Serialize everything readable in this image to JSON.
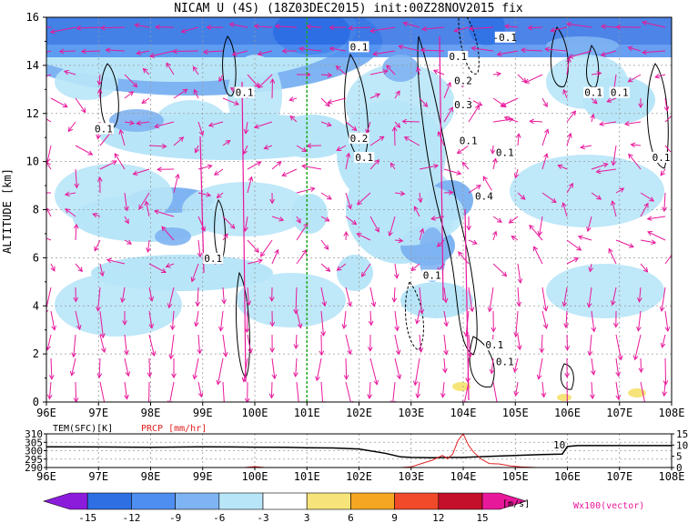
{
  "title": "NICAM U (4S) (18Z03DEC2015) init:00Z28NOV2015 fix",
  "colors": {
    "shade_levels": [
      "#8c1cdc",
      "#2e6fe4",
      "#4d8ef0",
      "#7fb4f2",
      "#b8e6f8",
      "#ffffff",
      "#f6e47a",
      "#f5a623",
      "#f04a2a",
      "#c4102a",
      "#e8189a"
    ],
    "vector": "#e8189a",
    "contour": "#000000",
    "reference_line": "#22aa22",
    "temperature_line": "#000000",
    "precip_line": "#e02020"
  },
  "chart_data": [
    {
      "type": "heatmap",
      "title": "NICAM U (4S) (18Z03DEC2015) init:00Z28NOV2015 fix",
      "ylabel": "ALTITUDE [km]",
      "x_ticks": [
        "96E",
        "97E",
        "98E",
        "99E",
        "100E",
        "101E",
        "102E",
        "103E",
        "104E",
        "105E",
        "106E",
        "107E",
        "108E"
      ],
      "x_range": [
        96,
        108
      ],
      "y_ticks": [
        "0",
        "2",
        "4",
        "6",
        "8",
        "10",
        "12",
        "14",
        "16"
      ],
      "y_range": [
        0,
        16
      ],
      "grid": true,
      "reference_line_x": 101,
      "colorbar": {
        "levels": [
          "-15",
          "-12",
          "-9",
          "-6",
          "-3",
          "3",
          "6",
          "9",
          "12",
          "15"
        ],
        "unit": "[m/s]"
      },
      "contour_labels": [
        {
          "text": "0.1",
          "x": 97.1,
          "y": 11.3
        },
        {
          "text": "0.1",
          "x": 99.8,
          "y": 12.8
        },
        {
          "text": "0.1",
          "x": 99.2,
          "y": 5.9
        },
        {
          "text": "0.1",
          "x": 102.0,
          "y": 14.7
        },
        {
          "text": "0.2",
          "x": 102.0,
          "y": 10.9
        },
        {
          "text": "0.1",
          "x": 102.1,
          "y": 10.1
        },
        {
          "text": "0.1",
          "x": 103.4,
          "y": 5.2
        },
        {
          "text": "0.1",
          "x": 103.9,
          "y": 14.3
        },
        {
          "text": "0.2",
          "x": 104.0,
          "y": 13.3
        },
        {
          "text": "0.3",
          "x": 104.0,
          "y": 12.3
        },
        {
          "text": "0.1",
          "x": 104.1,
          "y": 10.8
        },
        {
          "text": "0.4",
          "x": 104.4,
          "y": 8.5
        },
        {
          "text": "0.1",
          "x": 104.8,
          "y": 10.3
        },
        {
          "text": "-0.1",
          "x": 104.8,
          "y": 15.1
        },
        {
          "text": "0.1",
          "x": 104.6,
          "y": 2.3
        },
        {
          "text": "0.1",
          "x": 104.8,
          "y": 1.6
        },
        {
          "text": "0.1",
          "x": 106.5,
          "y": 12.8
        },
        {
          "text": "0.1",
          "x": 107.0,
          "y": 12.8
        },
        {
          "text": "0.1",
          "x": 107.8,
          "y": 10.1
        }
      ],
      "legend_note": "Wx100(vector)"
    },
    {
      "type": "line",
      "x_ticks": [
        "96E",
        "97E",
        "98E",
        "99E",
        "100E",
        "101E",
        "102E",
        "103E",
        "104E",
        "105E",
        "106E",
        "107E",
        "108E"
      ],
      "x_range": [
        96,
        108
      ],
      "left_axis": {
        "label": "TEM(SFC)[K]",
        "ticks": [
          "290",
          "295",
          "300",
          "305",
          "310"
        ],
        "range": [
          290,
          310
        ]
      },
      "right_axis": {
        "label": "PRCP [mm/hr]",
        "ticks": [
          "0",
          "5",
          "10",
          "15"
        ],
        "range": [
          0,
          15
        ]
      },
      "annotation": "10",
      "series": [
        {
          "name": "TEM(SFC)[K]",
          "x": [
            96,
            97,
            98,
            99,
            100,
            100.6,
            101,
            101.5,
            102,
            102.5,
            102.8,
            103,
            103.4,
            103.8,
            104,
            104.5,
            105,
            105.5,
            105.9,
            106,
            106.2,
            107,
            108
          ],
          "y": [
            302.3,
            302.2,
            302.0,
            302.3,
            302.1,
            302.0,
            301.8,
            301.6,
            301.0,
            298.5,
            296.3,
            296.0,
            295.8,
            296.0,
            296.0,
            296.6,
            297.2,
            297.7,
            298.0,
            302.5,
            303.0,
            303.0,
            303.0
          ]
        },
        {
          "name": "PRCP [mm/hr]",
          "x": [
            96,
            99.8,
            100,
            100.2,
            101,
            102,
            102.8,
            103,
            103.2,
            103.4,
            103.6,
            103.7,
            103.8,
            103.9,
            104.0,
            104.1,
            104.2,
            104.35,
            104.5,
            104.7,
            104.9,
            105.1,
            105.4,
            106,
            107,
            108
          ],
          "y": [
            0,
            0,
            0.4,
            0,
            0,
            0,
            0,
            0.3,
            1.8,
            3.2,
            5.4,
            4.0,
            6.0,
            12.1,
            15.0,
            10.0,
            6.8,
            3.7,
            1.8,
            1.6,
            0.7,
            0.3,
            0,
            0,
            0,
            0
          ]
        }
      ]
    }
  ]
}
